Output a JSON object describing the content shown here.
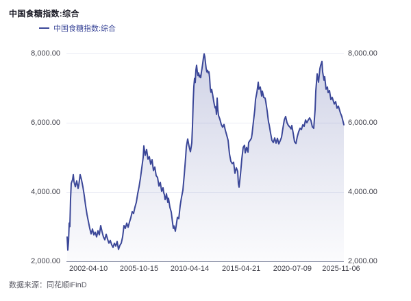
{
  "title": "中国食糖指数:综合",
  "legend": {
    "label": "中国食糖指数:综合"
  },
  "footer": {
    "source": "数据来源：同花顺iFinD"
  },
  "colors": {
    "line": "#3b4798",
    "area_top": "rgba(59,71,152,0.24)",
    "area_bottom": "rgba(59,71,152,0.02)",
    "grid": "#e9ebf4",
    "axis": "#9298ac",
    "tick_text": "#3c3c46",
    "title_text": "#1b1b26",
    "footer_text": "#5a5a64",
    "background": "#ffffff"
  },
  "chart_data": {
    "type": "line",
    "title": "中国食糖指数:综合",
    "legend_position": "top-left",
    "grid": true,
    "area_fill": true,
    "ylim": [
      2000,
      8000
    ],
    "y_axis_sides": [
      "left",
      "right"
    ],
    "y_ticks": [
      {
        "value": 2000,
        "label": "2,000.00"
      },
      {
        "value": 4000,
        "label": "4,000.00"
      },
      {
        "value": 6000,
        "label": "6,000.00"
      },
      {
        "value": 8000,
        "label": "8,000.00"
      }
    ],
    "x_ticks": [
      {
        "pos": 0.077,
        "label": "2002-04-10"
      },
      {
        "pos": 0.26,
        "label": "2005-10-15"
      },
      {
        "pos": 0.443,
        "label": "2010-04-14"
      },
      {
        "pos": 0.629,
        "label": "2015-04-21"
      },
      {
        "pos": 0.814,
        "label": "2020-07-09"
      },
      {
        "pos": 0.99,
        "label": "2025-11-06"
      }
    ],
    "series": [
      {
        "name": "中国食糖指数:综合",
        "points": [
          [
            0.0,
            2700
          ],
          [
            0.0025,
            2320
          ],
          [
            0.005,
            2550
          ],
          [
            0.0074,
            3100
          ],
          [
            0.0099,
            3000
          ],
          [
            0.0124,
            3800
          ],
          [
            0.0149,
            4250
          ],
          [
            0.0198,
            4360
          ],
          [
            0.0223,
            4500
          ],
          [
            0.0248,
            4300
          ],
          [
            0.0297,
            4150
          ],
          [
            0.0347,
            4320
          ],
          [
            0.0396,
            4100
          ],
          [
            0.0421,
            4200
          ],
          [
            0.047,
            4500
          ],
          [
            0.052,
            4350
          ],
          [
            0.0569,
            4150
          ],
          [
            0.0619,
            3900
          ],
          [
            0.0668,
            3600
          ],
          [
            0.0718,
            3350
          ],
          [
            0.0767,
            3150
          ],
          [
            0.0817,
            2950
          ],
          [
            0.0866,
            2790
          ],
          [
            0.0916,
            2930
          ],
          [
            0.0965,
            2760
          ],
          [
            0.1015,
            2840
          ],
          [
            0.1064,
            2700
          ],
          [
            0.1114,
            2880
          ],
          [
            0.1163,
            2760
          ],
          [
            0.1213,
            3030
          ],
          [
            0.1262,
            2850
          ],
          [
            0.1312,
            2700
          ],
          [
            0.1361,
            2620
          ],
          [
            0.1411,
            2780
          ],
          [
            0.146,
            2640
          ],
          [
            0.151,
            2520
          ],
          [
            0.1559,
            2600
          ],
          [
            0.1609,
            2480
          ],
          [
            0.1658,
            2400
          ],
          [
            0.1708,
            2520
          ],
          [
            0.1757,
            2440
          ],
          [
            0.1807,
            2570
          ],
          [
            0.1856,
            2340
          ],
          [
            0.1906,
            2460
          ],
          [
            0.1955,
            2520
          ],
          [
            0.2005,
            2700
          ],
          [
            0.2054,
            3030
          ],
          [
            0.2104,
            2950
          ],
          [
            0.2153,
            3100
          ],
          [
            0.2203,
            2980
          ],
          [
            0.2252,
            3130
          ],
          [
            0.2302,
            3260
          ],
          [
            0.2351,
            3430
          ],
          [
            0.2401,
            3380
          ],
          [
            0.245,
            3560
          ],
          [
            0.25,
            3700
          ],
          [
            0.2549,
            3950
          ],
          [
            0.2599,
            4150
          ],
          [
            0.2649,
            4400
          ],
          [
            0.2698,
            4700
          ],
          [
            0.2748,
            5000
          ],
          [
            0.2772,
            5330
          ],
          [
            0.2822,
            5060
          ],
          [
            0.2871,
            5230
          ],
          [
            0.2921,
            4950
          ],
          [
            0.297,
            5020
          ],
          [
            0.302,
            4800
          ],
          [
            0.3069,
            4930
          ],
          [
            0.3119,
            4620
          ],
          [
            0.3168,
            4720
          ],
          [
            0.3218,
            4470
          ],
          [
            0.3267,
            4420
          ],
          [
            0.3317,
            4170
          ],
          [
            0.3366,
            4280
          ],
          [
            0.3416,
            4020
          ],
          [
            0.3465,
            4120
          ],
          [
            0.349,
            3980
          ],
          [
            0.3515,
            3920
          ],
          [
            0.354,
            3780
          ],
          [
            0.3564,
            3830
          ],
          [
            0.3589,
            3950
          ],
          [
            0.3639,
            3700
          ],
          [
            0.3663,
            3820
          ],
          [
            0.3713,
            3560
          ],
          [
            0.3762,
            3420
          ],
          [
            0.3812,
            3100
          ],
          [
            0.3837,
            2950
          ],
          [
            0.3861,
            3020
          ],
          [
            0.3911,
            2870
          ],
          [
            0.3936,
            3000
          ],
          [
            0.3985,
            3270
          ],
          [
            0.4035,
            3230
          ],
          [
            0.4084,
            3600
          ],
          [
            0.4134,
            3850
          ],
          [
            0.4183,
            4050
          ],
          [
            0.4233,
            4500
          ],
          [
            0.4282,
            5000
          ],
          [
            0.4307,
            5300
          ],
          [
            0.4356,
            5530
          ],
          [
            0.4406,
            5320
          ],
          [
            0.4455,
            5160
          ],
          [
            0.4505,
            5420
          ],
          [
            0.4529,
            5900
          ],
          [
            0.4554,
            6600
          ],
          [
            0.4579,
            7050
          ],
          [
            0.4604,
            7280
          ],
          [
            0.4629,
            7160
          ],
          [
            0.4653,
            7520
          ],
          [
            0.4678,
            7660
          ],
          [
            0.4703,
            7480
          ],
          [
            0.4728,
            7360
          ],
          [
            0.4752,
            7440
          ],
          [
            0.4777,
            7320
          ],
          [
            0.4802,
            7370
          ],
          [
            0.4827,
            7300
          ],
          [
            0.4851,
            7460
          ],
          [
            0.4876,
            7580
          ],
          [
            0.4901,
            7720
          ],
          [
            0.4926,
            7880
          ],
          [
            0.495,
            7990
          ],
          [
            0.4975,
            7900
          ],
          [
            0.5,
            7730
          ],
          [
            0.5025,
            7560
          ],
          [
            0.505,
            7470
          ],
          [
            0.5074,
            7510
          ],
          [
            0.5099,
            7440
          ],
          [
            0.5124,
            7470
          ],
          [
            0.5149,
            7300
          ],
          [
            0.5173,
            6990
          ],
          [
            0.5198,
            6880
          ],
          [
            0.5223,
            6960
          ],
          [
            0.5248,
            6860
          ],
          [
            0.5272,
            6740
          ],
          [
            0.5297,
            6620
          ],
          [
            0.5322,
            6510
          ],
          [
            0.5347,
            6430
          ],
          [
            0.5371,
            6460
          ],
          [
            0.5396,
            6240
          ],
          [
            0.5421,
            6710
          ],
          [
            0.5446,
            6380
          ],
          [
            0.547,
            6210
          ],
          [
            0.552,
            6100
          ],
          [
            0.5569,
            5950
          ],
          [
            0.5619,
            5870
          ],
          [
            0.5668,
            5950
          ],
          [
            0.5718,
            5780
          ],
          [
            0.5767,
            5640
          ],
          [
            0.5817,
            5490
          ],
          [
            0.5866,
            5100
          ],
          [
            0.5916,
            4890
          ],
          [
            0.5965,
            4820
          ],
          [
            0.6015,
            4860
          ],
          [
            0.6064,
            4540
          ],
          [
            0.6114,
            4700
          ],
          [
            0.6163,
            4600
          ],
          [
            0.6188,
            4240
          ],
          [
            0.6213,
            4140
          ],
          [
            0.6262,
            4500
          ],
          [
            0.6312,
            4950
          ],
          [
            0.6361,
            5290
          ],
          [
            0.6411,
            5350
          ],
          [
            0.6436,
            5130
          ],
          [
            0.6485,
            5290
          ],
          [
            0.6535,
            5150
          ],
          [
            0.6559,
            5430
          ],
          [
            0.6609,
            5490
          ],
          [
            0.6658,
            5550
          ],
          [
            0.6683,
            5680
          ],
          [
            0.6733,
            6040
          ],
          [
            0.6782,
            6380
          ],
          [
            0.6807,
            6670
          ],
          [
            0.6856,
            6870
          ],
          [
            0.6906,
            7170
          ],
          [
            0.6931,
            6970
          ],
          [
            0.698,
            7030
          ],
          [
            0.703,
            6770
          ],
          [
            0.7054,
            6910
          ],
          [
            0.7104,
            6730
          ],
          [
            0.7153,
            6710
          ],
          [
            0.7178,
            6610
          ],
          [
            0.7228,
            6340
          ],
          [
            0.7277,
            6020
          ],
          [
            0.7302,
            5940
          ],
          [
            0.7351,
            5700
          ],
          [
            0.7401,
            5490
          ],
          [
            0.745,
            5430
          ],
          [
            0.75,
            5560
          ],
          [
            0.7549,
            5410
          ],
          [
            0.7599,
            5550
          ],
          [
            0.7649,
            5390
          ],
          [
            0.7698,
            5480
          ],
          [
            0.7748,
            5580
          ],
          [
            0.7797,
            5840
          ],
          [
            0.7847,
            6080
          ],
          [
            0.7896,
            6180
          ],
          [
            0.7946,
            6000
          ],
          [
            0.7995,
            5920
          ],
          [
            0.8045,
            5880
          ],
          [
            0.8094,
            5820
          ],
          [
            0.8119,
            5920
          ],
          [
            0.8168,
            5700
          ],
          [
            0.8218,
            5450
          ],
          [
            0.8267,
            5400
          ],
          [
            0.8317,
            5600
          ],
          [
            0.8366,
            5740
          ],
          [
            0.8416,
            5840
          ],
          [
            0.8465,
            5800
          ],
          [
            0.8515,
            5940
          ],
          [
            0.8564,
            5900
          ],
          [
            0.8614,
            6080
          ],
          [
            0.8663,
            6000
          ],
          [
            0.8713,
            6080
          ],
          [
            0.8762,
            6140
          ],
          [
            0.8812,
            6060
          ],
          [
            0.8861,
            5880
          ],
          [
            0.8911,
            5840
          ],
          [
            0.896,
            6380
          ],
          [
            0.8985,
            6910
          ],
          [
            0.9035,
            7410
          ],
          [
            0.9084,
            7170
          ],
          [
            0.9134,
            7560
          ],
          [
            0.9158,
            7650
          ],
          [
            0.9208,
            7770
          ],
          [
            0.9233,
            7470
          ],
          [
            0.9282,
            7230
          ],
          [
            0.9307,
            7330
          ],
          [
            0.9356,
            6970
          ],
          [
            0.9406,
            7030
          ],
          [
            0.9431,
            6870
          ],
          [
            0.948,
            6930
          ],
          [
            0.953,
            6670
          ],
          [
            0.9579,
            6730
          ],
          [
            0.9653,
            6540
          ],
          [
            0.9703,
            6610
          ],
          [
            0.9752,
            6420
          ],
          [
            0.9802,
            6480
          ],
          [
            0.9876,
            6280
          ],
          [
            0.9926,
            6180
          ],
          [
            0.9975,
            6020
          ],
          [
            1.0,
            5940
          ]
        ]
      }
    ]
  }
}
